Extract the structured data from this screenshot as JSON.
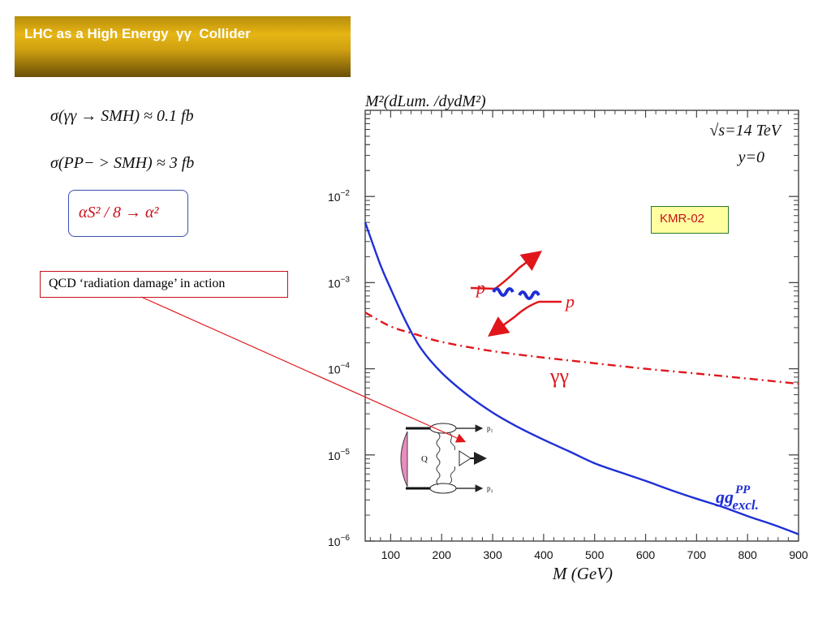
{
  "slide": {
    "title": "LHC as a High Energy  γγ  Collider",
    "formula1": "σ(γγ → SMH) ≈ 0.1 fb",
    "formula2": "σ(PP− > SMH) ≈ 3 fb",
    "alpha_relation": "αS² / 8 → α²",
    "qcd_note": "QCD ‘radiation damage’ in action",
    "colors": {
      "accent_gold": "#e6b514",
      "red": "#c8101a",
      "blue": "#1f2fd6"
    }
  },
  "chart_data": {
    "type": "line",
    "title": "M²(dLum. /dydM²)",
    "xlabel": "M (GeV)",
    "ylabel": "M²(dLum. /dydM²)",
    "xlim": [
      50,
      900
    ],
    "ylim": [
      1e-06,
      0.1
    ],
    "yscale": "log",
    "x_ticks": [
      100,
      200,
      300,
      400,
      500,
      600,
      700,
      800,
      900
    ],
    "y_ticks": [
      {
        "exp": -6,
        "label_base": "10",
        "label_exp": "−6"
      },
      {
        "exp": -5,
        "label_base": "10",
        "label_exp": "−5"
      },
      {
        "exp": -4,
        "label_base": "10",
        "label_exp": "−4"
      },
      {
        "exp": -3,
        "label_base": "10",
        "label_exp": "−3"
      },
      {
        "exp": -2,
        "label_base": "10",
        "label_exp": "−2"
      }
    ],
    "annotations": {
      "sqrt_s": "√s=14 TeV",
      "rapidity": "y=0",
      "model": "KMR-02",
      "proton_label": "p"
    },
    "series": [
      {
        "name": "gg excl. PP",
        "label_main": "gg",
        "label_sup": "PP",
        "label_sub": "excl.",
        "color": "#1f2fd6",
        "style": "solid",
        "x": [
          50,
          80,
          100,
          130,
          160,
          200,
          250,
          300,
          350,
          400,
          450,
          500,
          550,
          600,
          650,
          700,
          750,
          800,
          850,
          900
        ],
        "y": [
          0.005,
          0.0016,
          0.00085,
          0.00035,
          0.00017,
          9e-05,
          5e-05,
          3.1e-05,
          2.1e-05,
          1.5e-05,
          1.1e-05,
          8e-06,
          6.3e-06,
          5e-06,
          3.9e-06,
          3.1e-06,
          2.5e-06,
          1.95e-06,
          1.55e-06,
          1.2e-06
        ]
      },
      {
        "name": "γγ",
        "label_main": "γγ",
        "color": "#e0161b",
        "style": "dashdot",
        "x": [
          50,
          100,
          150,
          200,
          300,
          400,
          500,
          600,
          700,
          800,
          900
        ],
        "y": [
          0.00045,
          0.00031,
          0.00025,
          0.000205,
          0.00016,
          0.000135,
          0.000116,
          0.0001,
          8.8e-05,
          7.7e-05,
          6.7e-05
        ]
      }
    ]
  }
}
